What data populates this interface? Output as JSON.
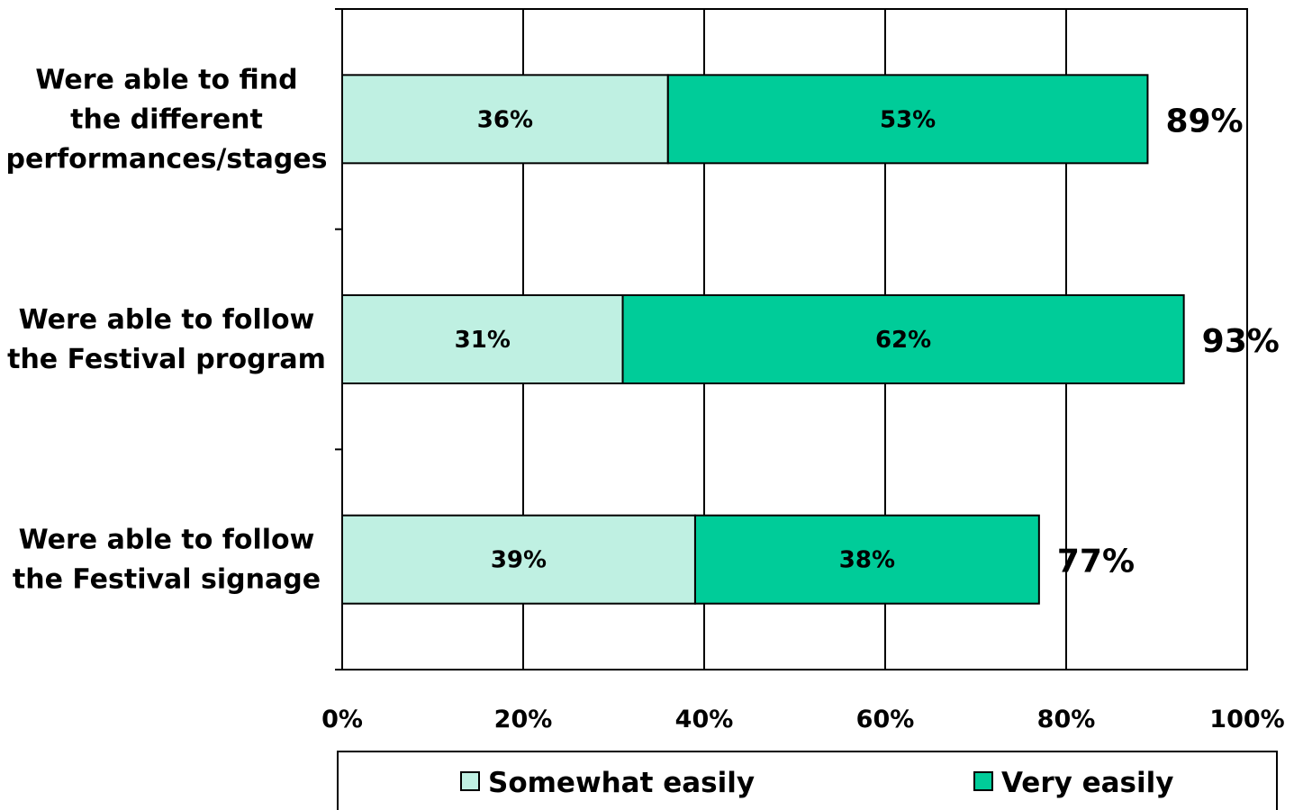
{
  "chart_data": {
    "type": "bar",
    "orientation": "horizontal",
    "stacked": true,
    "categories": [
      [
        "Were able to find",
        "the different",
        "performances/stages"
      ],
      [
        "Were able to follow",
        "the Festival program"
      ],
      [
        "Were able to follow",
        "the Festival signage"
      ]
    ],
    "series": [
      {
        "name": "Somewhat easily",
        "color": "#bff0e2",
        "values": [
          36,
          31,
          39
        ],
        "labels": [
          "36%",
          "31%",
          "39%"
        ]
      },
      {
        "name": "Very easily",
        "color": "#00cc99",
        "values": [
          53,
          62,
          38
        ],
        "labels": [
          "53%",
          "62%",
          "38%"
        ]
      }
    ],
    "totals": [
      "89%",
      "93%",
      "77%"
    ],
    "total_values": [
      89,
      93,
      77
    ],
    "xlim": [
      0,
      100
    ],
    "xticks": [
      0,
      20,
      40,
      60,
      80,
      100
    ],
    "xtick_labels": [
      "0%",
      "20%",
      "40%",
      "60%",
      "80%",
      "100%"
    ],
    "grid": true,
    "legend_position": "bottom"
  }
}
